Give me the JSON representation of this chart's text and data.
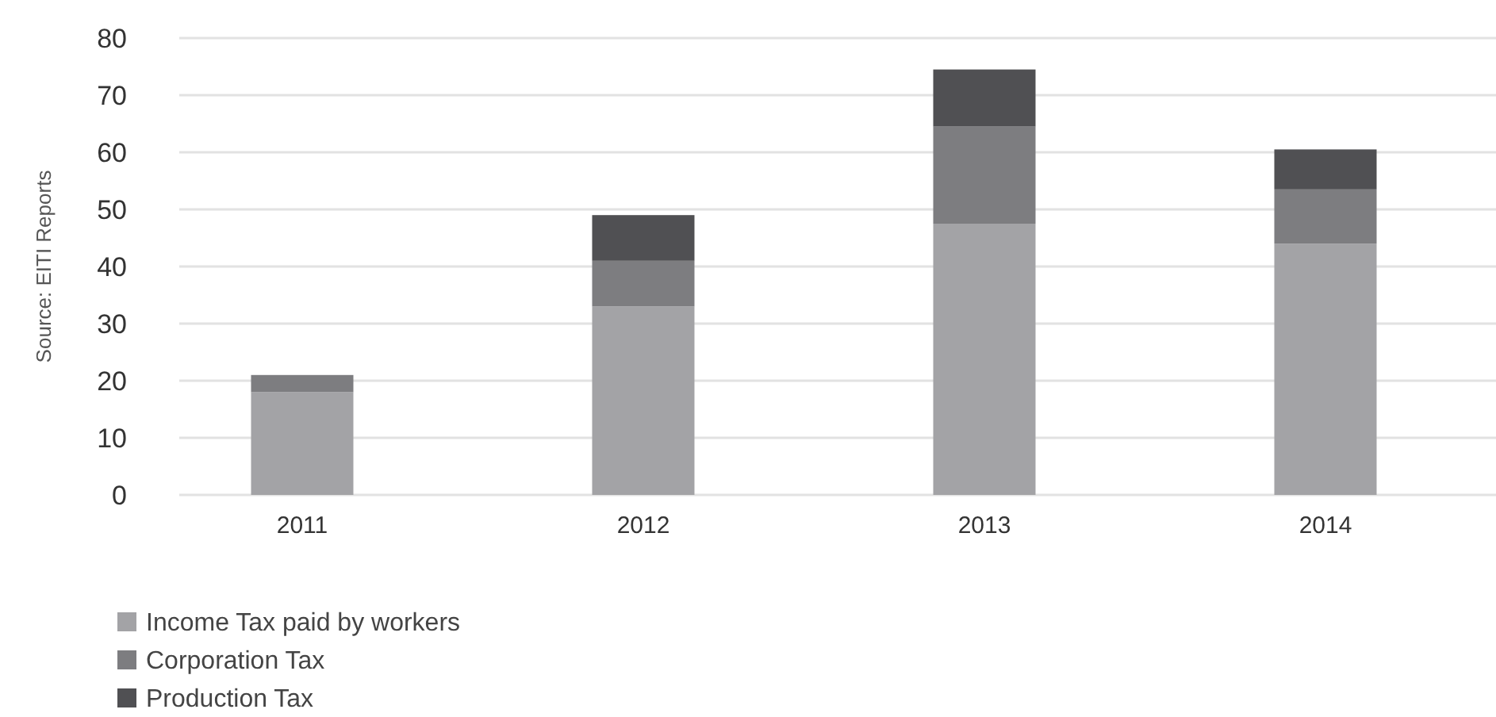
{
  "chart_data": {
    "type": "bar",
    "ylabel": "Source: EITI Reports",
    "categories": [
      "2011",
      "2012",
      "2013",
      "2014"
    ],
    "stacked": true,
    "series": [
      {
        "name": "Income Tax paid by workers",
        "color": "#a3a3a6",
        "values": [
          18,
          33,
          47.5,
          44
        ]
      },
      {
        "name": "Corporation Tax",
        "color": "#7d7d80",
        "values": [
          3,
          8,
          17,
          9.5
        ]
      },
      {
        "name": "Production Tax",
        "color": "#505053",
        "values": [
          0,
          8,
          10,
          7
        ]
      }
    ],
    "ylim": [
      0,
      80
    ],
    "yticks": [
      0,
      10,
      20,
      30,
      40,
      50,
      60,
      70,
      80
    ],
    "grid": "y",
    "legend": "bottom left"
  }
}
